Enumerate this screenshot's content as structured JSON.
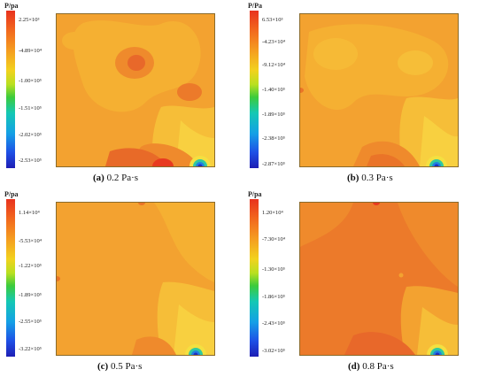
{
  "panels": [
    {
      "unit": "P/pa",
      "ticks": [
        "2.25×10³",
        "-4.89×10⁴",
        "-1.00×10⁵",
        "-1.51×10⁵",
        "-2.02×10⁵",
        "-2.53×10⁵"
      ],
      "letter": "(a)",
      "label": "0.2 Pa·s"
    },
    {
      "unit": "P/Pa",
      "ticks": [
        "6.53×10³",
        "-4.23×10⁴",
        "-9.12×10⁴",
        "-1.40×10⁵",
        "-1.89×10⁵",
        "-2.38×10⁵",
        "-2.87×10⁵"
      ],
      "letter": "(b)",
      "label": "0.3 Pa·s"
    },
    {
      "unit": "P/pa",
      "ticks": [
        "1.14×10⁴",
        "-5.53×10⁴",
        "-1.22×10⁵",
        "-1.89×10⁵",
        "-2.55×10⁵",
        "-3.22×10⁵"
      ],
      "letter": "(c)",
      "label": "0.5 Pa·s"
    },
    {
      "unit": "P/pa",
      "ticks": [
        "1.20×10⁴",
        "-7.30×10⁴",
        "-1.30×10⁵",
        "-1.86×10⁵",
        "-2.43×10⁵",
        "-3.02×10⁵"
      ],
      "letter": "(d)",
      "label": "0.8 Pa·s"
    }
  ]
}
